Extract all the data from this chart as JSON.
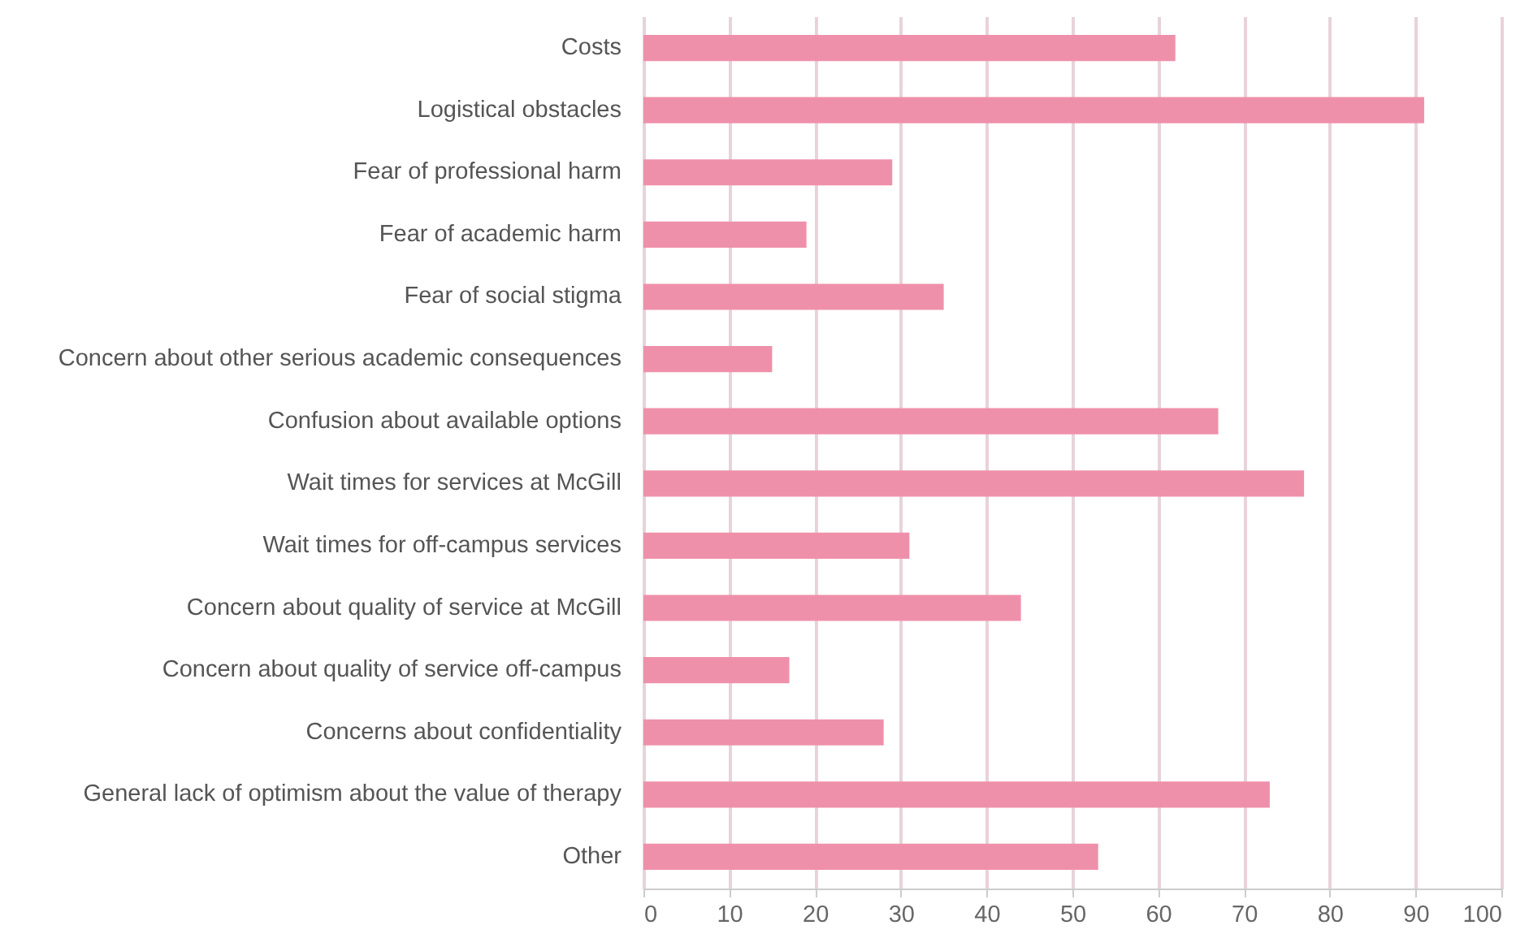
{
  "chart_data": {
    "type": "bar",
    "orientation": "horizontal",
    "categories": [
      "Costs",
      "Logistical obstacles",
      "Fear of professional harm",
      "Fear of academic harm",
      "Fear of social stigma",
      "Concern about other serious academic consequences",
      "Confusion about available options",
      "Wait times for services at McGill",
      "Wait times for off-campus services",
      "Concern about quality of service at McGill",
      "Concern about quality of service off-campus",
      "Concerns about confidentiality",
      "General lack of optimism about the value of therapy",
      "Other"
    ],
    "values": [
      62,
      91,
      29,
      19,
      35,
      15,
      67,
      77,
      31,
      44,
      17,
      28,
      73,
      53
    ],
    "color": "#ef90aa",
    "xlim": [
      0,
      100
    ],
    "xticks": [
      0,
      10,
      20,
      30,
      40,
      50,
      60,
      70,
      80,
      90,
      100
    ],
    "grid": "x"
  }
}
